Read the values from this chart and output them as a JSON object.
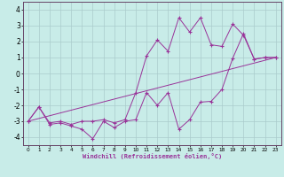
{
  "xlabel": "Windchill (Refroidissement éolien,°C)",
  "xlim": [
    -0.5,
    23.5
  ],
  "ylim": [
    -4.5,
    4.5
  ],
  "yticks": [
    -4,
    -3,
    -2,
    -1,
    0,
    1,
    2,
    3,
    4
  ],
  "xticks": [
    0,
    1,
    2,
    3,
    4,
    5,
    6,
    7,
    8,
    9,
    10,
    11,
    12,
    13,
    14,
    15,
    16,
    17,
    18,
    19,
    20,
    21,
    22,
    23
  ],
  "background_color": "#c8ece8",
  "grid_color": "#aacccc",
  "line_color": "#993399",
  "line1_x": [
    0,
    1,
    2,
    3,
    4,
    5,
    6,
    7,
    8,
    9,
    10,
    11,
    12,
    13,
    14,
    15,
    16,
    17,
    18,
    19,
    20,
    21,
    22,
    23
  ],
  "line1_y": [
    -3.0,
    -2.1,
    -3.2,
    -3.1,
    -3.3,
    -3.5,
    -4.1,
    -3.0,
    -3.4,
    -3.0,
    -2.9,
    -1.2,
    -2.0,
    -1.2,
    -3.5,
    -2.9,
    -1.8,
    -1.75,
    -1.0,
    0.95,
    2.5,
    0.9,
    1.0,
    1.0
  ],
  "line2_x": [
    0,
    1,
    2,
    3,
    4,
    5,
    6,
    7,
    8,
    9,
    10,
    11,
    12,
    13,
    14,
    15,
    16,
    17,
    18,
    19,
    20,
    21,
    22,
    23
  ],
  "line2_y": [
    -3.0,
    -2.1,
    -3.1,
    -3.0,
    -3.2,
    -3.0,
    -3.0,
    -2.9,
    -3.1,
    -2.9,
    -1.2,
    1.1,
    2.1,
    1.4,
    3.5,
    2.6,
    3.5,
    1.8,
    1.7,
    3.1,
    2.4,
    0.9,
    1.0,
    1.0
  ],
  "line3_x": [
    0,
    23
  ],
  "line3_y": [
    -3.0,
    1.0
  ]
}
